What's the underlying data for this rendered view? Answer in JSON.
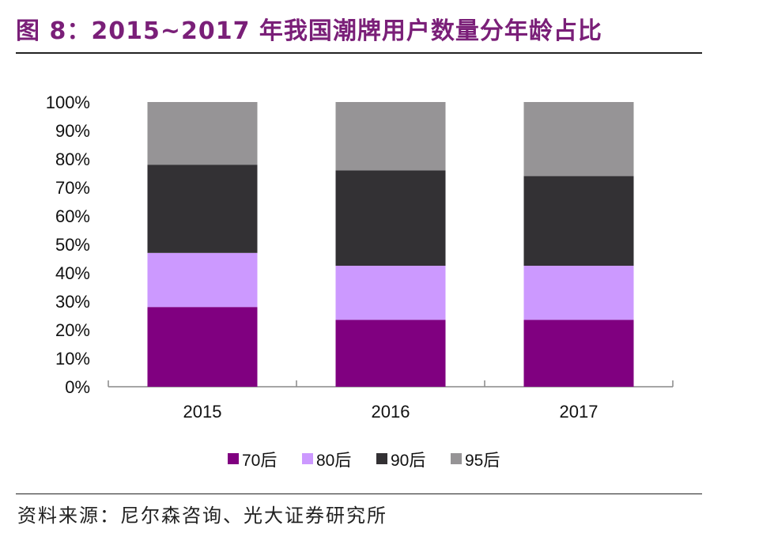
{
  "title": "图 8：2015~2017 年我国潮牌用户数量分年龄占比",
  "source": "资料来源：尼尔森咨询、光大证券研究所",
  "chart_data": {
    "type": "bar",
    "stacked": true,
    "categories": [
      "2015",
      "2016",
      "2017"
    ],
    "series": [
      {
        "name": "70后",
        "color": "#800080",
        "values": [
          28,
          23.5,
          23.5
        ]
      },
      {
        "name": "80后",
        "color": "#cc99ff",
        "values": [
          19,
          19,
          19
        ]
      },
      {
        "name": "90后",
        "color": "#333134",
        "values": [
          31,
          33.5,
          31.5
        ]
      },
      {
        "name": "95后",
        "color": "#969496",
        "values": [
          22,
          24,
          26
        ]
      }
    ],
    "ylim": [
      0,
      100
    ],
    "yticks": [
      "0%",
      "10%",
      "20%",
      "30%",
      "40%",
      "50%",
      "60%",
      "70%",
      "80%",
      "90%",
      "100%"
    ],
    "grid": false,
    "legend": "bottom"
  }
}
